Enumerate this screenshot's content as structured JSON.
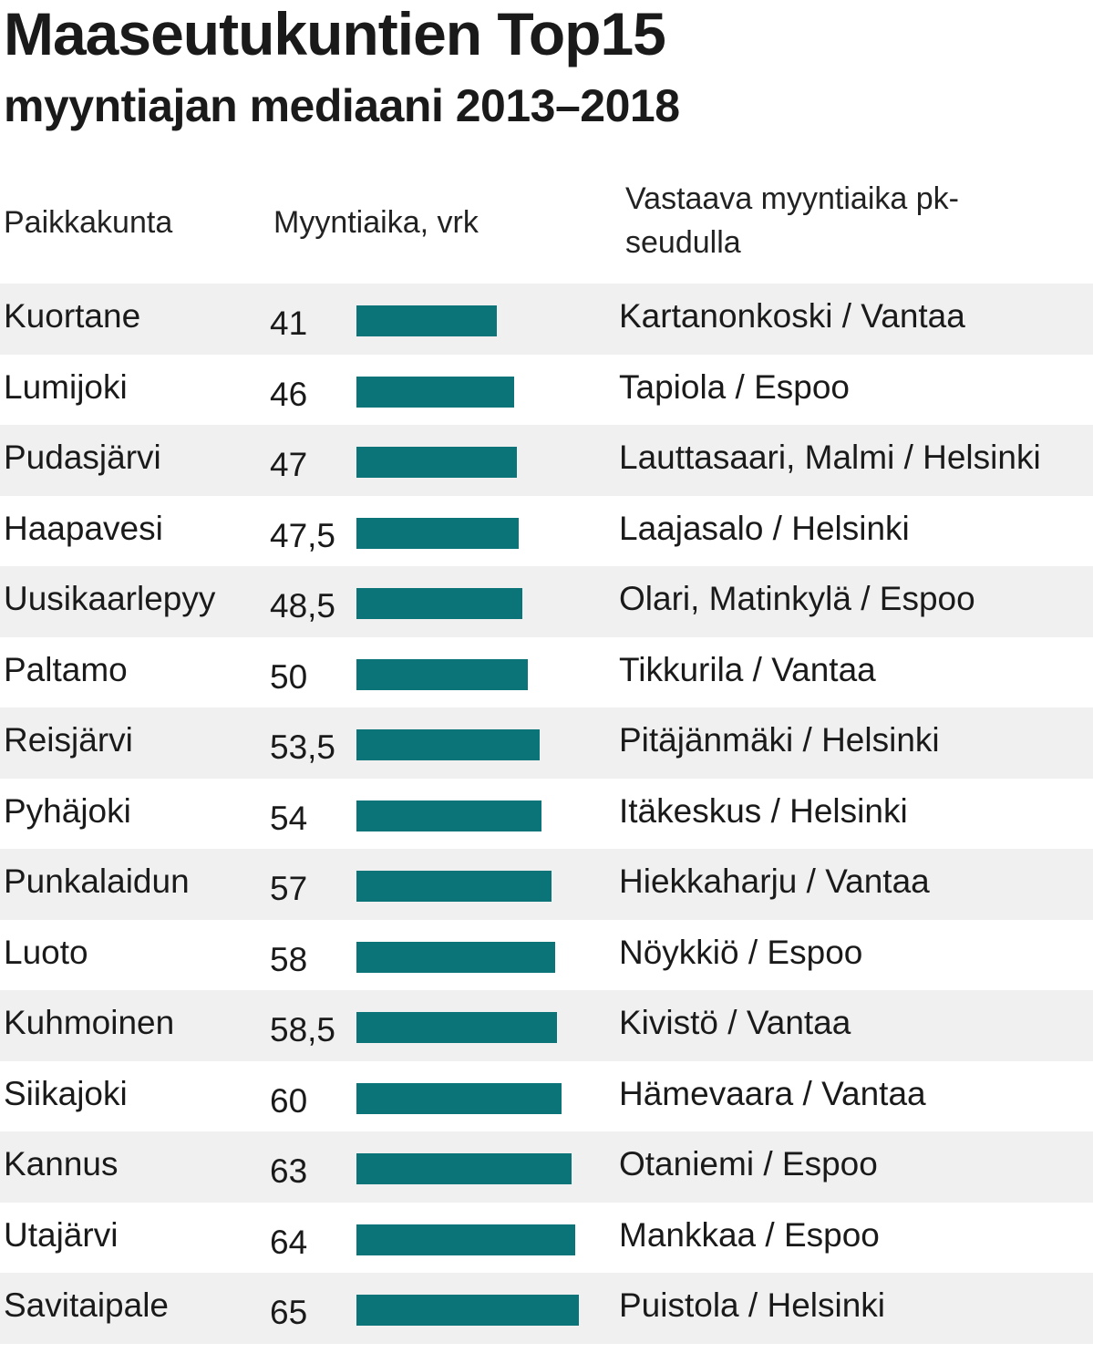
{
  "chart_data": {
    "type": "bar",
    "orientation": "horizontal",
    "title": "Maaseutukuntien Top15",
    "subtitle": "myyntiajan mediaani 2013–2018",
    "columns": {
      "place": "Paikkakunta",
      "time": "Myyntiaika, vrk",
      "equivalent": "Vastaava myyntiaika pk-seudulla"
    },
    "rows": [
      {
        "place": "Kuortane",
        "value": 41,
        "label": "41",
        "equivalent": "Kartanonkoski / Vantaa"
      },
      {
        "place": "Lumijoki",
        "value": 46,
        "label": "46",
        "equivalent": "Tapiola / Espoo"
      },
      {
        "place": "Pudasjärvi",
        "value": 47,
        "label": "47",
        "equivalent": "Lauttasaari, Malmi / Helsinki"
      },
      {
        "place": "Haapavesi",
        "value": 47.5,
        "label": "47,5",
        "equivalent": "Laajasalo / Helsinki"
      },
      {
        "place": "Uusikaarlepyy",
        "value": 48.5,
        "label": "48,5",
        "equivalent": "Olari, Matinkylä / Espoo"
      },
      {
        "place": "Paltamo",
        "value": 50,
        "label": "50",
        "equivalent": "Tikkurila / Vantaa"
      },
      {
        "place": "Reisjärvi",
        "value": 53.5,
        "label": "53,5",
        "equivalent": "Pitäjänmäki / Helsinki"
      },
      {
        "place": "Pyhäjoki",
        "value": 54,
        "label": "54",
        "equivalent": "Itäkeskus / Helsinki"
      },
      {
        "place": "Punkalaidun",
        "value": 57,
        "label": "57",
        "equivalent": "Hiekkaharju / Vantaa"
      },
      {
        "place": "Luoto",
        "value": 58,
        "label": "58",
        "equivalent": "Nöykkiö / Espoo"
      },
      {
        "place": "Kuhmoinen",
        "value": 58.5,
        "label": "58,5",
        "equivalent": "Kivistö / Vantaa"
      },
      {
        "place": "Siikajoki",
        "value": 60,
        "label": "60",
        "equivalent": "Hämevaara / Vantaa"
      },
      {
        "place": "Kannus",
        "value": 63,
        "label": "63",
        "equivalent": "Otaniemi / Espoo"
      },
      {
        "place": "Utajärvi",
        "value": 64,
        "label": "64",
        "equivalent": "Mankkaa / Espoo"
      },
      {
        "place": "Savitaipale",
        "value": 65,
        "label": "65",
        "equivalent": "Puistola / Helsinki"
      }
    ],
    "bar_color": "#0b7478",
    "row_shade_color": "#f0f0f0",
    "xlim": [
      0,
      65
    ],
    "grid": false,
    "legend": "none"
  }
}
